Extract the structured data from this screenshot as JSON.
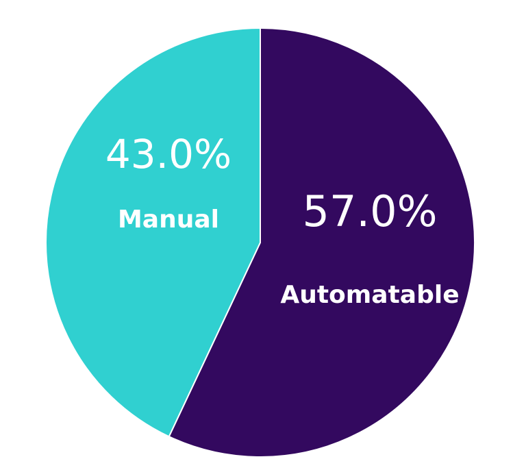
{
  "chart_data": {
    "type": "pie",
    "title": "",
    "slices": [
      {
        "label": "Automatable",
        "value": 57.0,
        "display": "57.0%",
        "color": "#33095f"
      },
      {
        "label": "Manual",
        "value": 43.0,
        "display": "43.0%",
        "color": "#30d0d0"
      }
    ],
    "start_angle_deg": 0,
    "direction": "clockwise",
    "legend": "none"
  }
}
